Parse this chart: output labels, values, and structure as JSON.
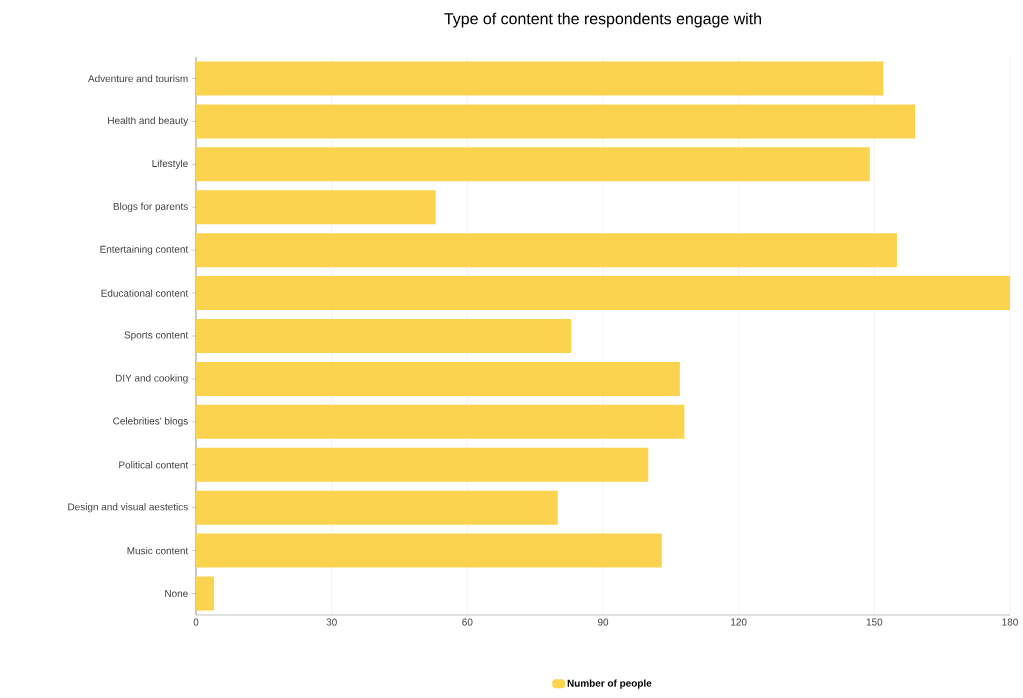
{
  "chart_data": {
    "type": "bar",
    "orientation": "horizontal",
    "title": "Type of content the respondents engage with",
    "categories": [
      "Adventure and tourism",
      "Health and beauty",
      "Lifestyle",
      "Blogs for parents",
      "Entertaining content",
      "Educational content",
      "Sports content",
      "DIY and cooking",
      "Celebrities' blogs",
      "Political content",
      "Design and visual aestetics",
      "Music content",
      "None"
    ],
    "series": [
      {
        "name": "Number of people",
        "color": "#fcd34f",
        "values": [
          152,
          159,
          149,
          53,
          155,
          180,
          83,
          107,
          108,
          100,
          80,
          103,
          4
        ]
      }
    ],
    "xlim": [
      0,
      180
    ],
    "xticks": [
      0,
      30,
      60,
      90,
      120,
      150,
      180
    ],
    "grid": "x",
    "legend": "bottom"
  }
}
